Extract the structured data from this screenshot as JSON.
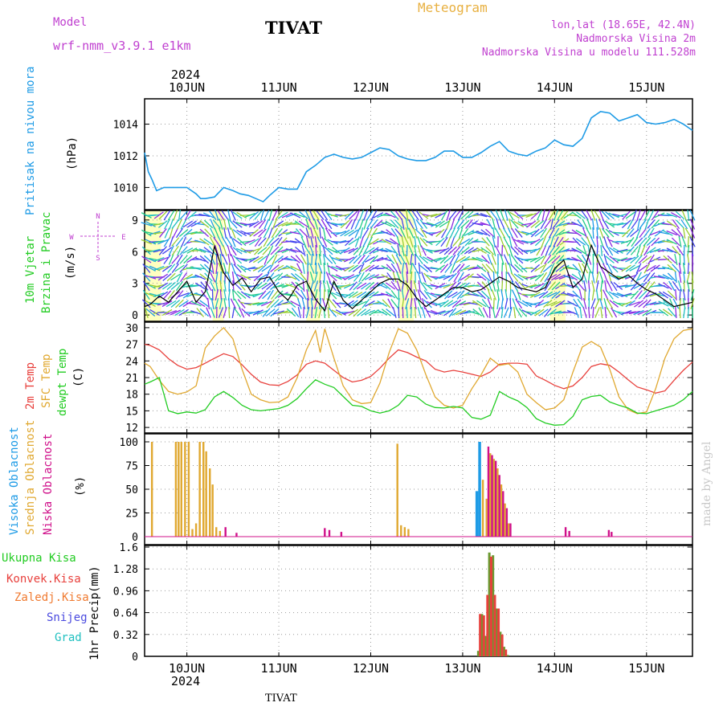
{
  "header": {
    "model_label": "Model",
    "model_name": "wrf-nmm_v3.9.1 e1km",
    "station": "TIVAT",
    "title": "Meteogram",
    "coords": "lon,lat (18.65E, 42.4N)",
    "elevation": "Nadmorska Visina 2m",
    "model_elevation": "Nadmorska Visina u modelu 111.528m",
    "year": "2024",
    "credit": "made by Angel",
    "footer_station": "TIVAT"
  },
  "colors": {
    "pressure": "#1e9be6",
    "temp2m": "#e8403c",
    "sfc_temp": "#e0a830",
    "dewpt": "#22cc22",
    "high_cloud": "#1e9be6",
    "mid_cloud": "#e0a830",
    "low_cloud": "#d0108a",
    "total_precip": "#6a9a30",
    "convective": "#e8403c",
    "stratiform": "#f07a30",
    "snow": "#4a4adf",
    "graupel": "#20c0c0",
    "purple_text": "#c040d0",
    "gold_text": "#e8b040"
  },
  "time_axis": {
    "x_range_days": [
      9.54,
      15.5
    ],
    "day_labels": [
      {
        "x": 10,
        "label": "10JUN"
      },
      {
        "x": 11,
        "label": "11JUN"
      },
      {
        "x": 12,
        "label": "12JUN"
      },
      {
        "x": 13,
        "label": "13JUN"
      },
      {
        "x": 14,
        "label": "14JUN"
      },
      {
        "x": 15,
        "label": "15JUN"
      }
    ]
  },
  "chart_data": [
    {
      "type": "line",
      "panel": "pressure",
      "ylabel": "Pritisak na nivou mora",
      "unit": "(hPa)",
      "ylim": [
        1008.6,
        1015.6
      ],
      "yticks": [
        1010,
        1012,
        1014
      ],
      "grid": true,
      "series": [
        {
          "x": [
            9.54,
            9.58,
            9.62,
            9.67,
            9.75,
            9.83,
            9.92,
            10.0,
            10.1,
            10.15,
            10.2,
            10.3,
            10.4,
            10.5,
            10.58,
            10.67,
            10.75,
            10.83,
            10.9,
            11.0,
            11.1,
            11.2,
            11.3,
            11.4,
            11.5,
            11.6,
            11.7,
            11.8,
            11.9,
            12.0,
            12.1,
            12.2,
            12.3,
            12.4,
            12.5,
            12.6,
            12.7,
            12.8,
            12.9,
            13.0,
            13.1,
            13.2,
            13.3,
            13.4,
            13.5,
            13.6,
            13.7,
            13.8,
            13.9,
            14.0,
            14.1,
            14.2,
            14.3,
            14.4,
            14.5,
            14.6,
            14.7,
            14.8,
            14.9,
            15.0,
            15.1,
            15.2,
            15.3,
            15.4,
            15.5
          ],
          "values": [
            1012.2,
            1011.0,
            1010.5,
            1009.8,
            1010.0,
            1010.0,
            1010.0,
            1010.0,
            1009.6,
            1009.3,
            1009.3,
            1009.4,
            1010.0,
            1009.8,
            1009.6,
            1009.5,
            1009.3,
            1009.1,
            1009.5,
            1010.0,
            1009.9,
            1009.9,
            1011.0,
            1011.4,
            1011.9,
            1012.1,
            1011.9,
            1011.8,
            1011.9,
            1012.2,
            1012.5,
            1012.4,
            1012.0,
            1011.8,
            1011.7,
            1011.7,
            1011.9,
            1012.3,
            1012.3,
            1011.9,
            1011.9,
            1012.2,
            1012.6,
            1012.9,
            1012.3,
            1012.1,
            1012.0,
            1012.3,
            1012.5,
            1013.0,
            1012.7,
            1012.6,
            1013.1,
            1014.4,
            1014.8,
            1014.7,
            1014.2,
            1014.4,
            1014.6,
            1014.1,
            1014.0,
            1014.1,
            1014.3,
            1014.0,
            1013.6
          ]
        }
      ]
    },
    {
      "type": "line",
      "panel": "wind",
      "ylabel_1": "10m Vjetar",
      "ylabel_2": "Brzina i Pravac",
      "unit": "(m/s)",
      "ylim": [
        -0.6,
        9.9
      ],
      "yticks": [
        0,
        3,
        6,
        9
      ],
      "compass": {
        "n": "N",
        "s": "S",
        "w": "W",
        "e": "E"
      },
      "series": [
        {
          "name": "speed",
          "x": [
            9.54,
            9.6,
            9.7,
            9.8,
            9.9,
            10.0,
            10.1,
            10.2,
            10.3,
            10.4,
            10.5,
            10.6,
            10.7,
            10.8,
            10.9,
            11.0,
            11.1,
            11.2,
            11.3,
            11.4,
            11.5,
            11.6,
            11.7,
            11.8,
            11.9,
            12.0,
            12.1,
            12.2,
            12.3,
            12.4,
            12.5,
            12.6,
            12.7,
            12.8,
            12.9,
            13.0,
            13.1,
            13.2,
            13.3,
            13.4,
            13.5,
            13.6,
            13.7,
            13.8,
            13.9,
            14.0,
            14.1,
            14.2,
            14.3,
            14.4,
            14.5,
            14.6,
            14.7,
            14.8,
            14.9,
            15.0,
            15.1,
            15.2,
            15.3,
            15.4,
            15.5
          ],
          "values": [
            0.8,
            1.0,
            1.8,
            1.2,
            2.2,
            3.2,
            1.2,
            2.2,
            6.5,
            4.0,
            2.8,
            3.5,
            2.2,
            3.4,
            3.6,
            2.2,
            1.4,
            2.8,
            3.2,
            1.5,
            0.4,
            3.2,
            1.4,
            0.6,
            1.4,
            2.2,
            3.0,
            3.4,
            3.4,
            2.8,
            1.6,
            0.8,
            1.4,
            2.0,
            2.6,
            2.6,
            2.2,
            2.4,
            3.0,
            3.6,
            3.2,
            2.6,
            2.4,
            2.2,
            2.6,
            4.4,
            5.2,
            2.6,
            3.4,
            6.6,
            4.6,
            4.0,
            3.4,
            3.8,
            3.0,
            2.4,
            2.0,
            1.4,
            0.8,
            1.0,
            1.2
          ]
        }
      ]
    },
    {
      "type": "line",
      "panel": "temperature",
      "ylabel_1": "2m Temp",
      "ylabel_2": "SFC Temp",
      "ylabel_3": "dewpt Temp",
      "unit": "(C)",
      "ylim": [
        11,
        31
      ],
      "yticks": [
        12,
        15,
        18,
        21,
        24,
        27,
        30
      ],
      "series": [
        {
          "name": "2m Temp",
          "x": [
            9.54,
            9.6,
            9.7,
            9.8,
            9.9,
            10.0,
            10.1,
            10.2,
            10.3,
            10.4,
            10.5,
            10.6,
            10.7,
            10.8,
            10.9,
            11.0,
            11.1,
            11.2,
            11.3,
            11.4,
            11.5,
            11.6,
            11.7,
            11.8,
            11.9,
            12.0,
            12.1,
            12.2,
            12.3,
            12.4,
            12.5,
            12.6,
            12.7,
            12.8,
            12.9,
            13.0,
            13.1,
            13.2,
            13.3,
            13.4,
            13.5,
            13.6,
            13.7,
            13.8,
            13.9,
            14.0,
            14.1,
            14.2,
            14.3,
            14.4,
            14.5,
            14.6,
            14.7,
            14.8,
            14.9,
            15.0,
            15.1,
            15.2,
            15.3,
            15.4,
            15.5
          ],
          "values": [
            27.0,
            26.8,
            26.0,
            24.4,
            23.2,
            22.5,
            22.8,
            23.6,
            24.5,
            25.3,
            24.8,
            23.3,
            21.6,
            20.2,
            19.7,
            19.6,
            20.3,
            21.5,
            23.4,
            24.0,
            23.6,
            22.3,
            21.0,
            20.2,
            20.5,
            21.2,
            22.7,
            24.5,
            26.0,
            25.5,
            24.7,
            24.0,
            22.5,
            22.0,
            22.3,
            22.0,
            21.6,
            21.2,
            22.0,
            23.4,
            23.6,
            23.6,
            23.4,
            21.3,
            20.5,
            19.6,
            19.0,
            19.5,
            21.0,
            23.0,
            23.5,
            23.2,
            22.0,
            20.6,
            19.3,
            18.8,
            18.2,
            18.6,
            20.5,
            22.3,
            23.8
          ]
        },
        {
          "name": "SFC Temp",
          "x": [
            9.54,
            9.6,
            9.7,
            9.8,
            9.9,
            10.0,
            10.1,
            10.2,
            10.3,
            10.4,
            10.5,
            10.6,
            10.7,
            10.8,
            10.9,
            11.0,
            11.1,
            11.2,
            11.3,
            11.4,
            11.45,
            11.5,
            11.6,
            11.7,
            11.8,
            11.9,
            12.0,
            12.1,
            12.2,
            12.3,
            12.4,
            12.5,
            12.6,
            12.7,
            12.8,
            12.9,
            13.0,
            13.1,
            13.2,
            13.3,
            13.4,
            13.5,
            13.6,
            13.7,
            13.8,
            13.9,
            14.0,
            14.1,
            14.2,
            14.3,
            14.4,
            14.5,
            14.6,
            14.7,
            14.8,
            14.9,
            15.0,
            15.1,
            15.2,
            15.3,
            15.4,
            15.5
          ],
          "values": [
            23.6,
            23.0,
            20.5,
            18.5,
            18.0,
            18.4,
            19.5,
            26.3,
            28.5,
            30.0,
            28.0,
            22.5,
            18.0,
            17.0,
            16.5,
            16.6,
            17.5,
            21.0,
            26.0,
            29.5,
            25.5,
            29.8,
            24.5,
            19.5,
            17.0,
            16.3,
            16.5,
            20.0,
            25.5,
            29.8,
            29.0,
            26.0,
            21.5,
            17.5,
            16.0,
            15.5,
            16.0,
            19.0,
            21.5,
            24.5,
            23.2,
            23.5,
            22.0,
            18.0,
            16.5,
            15.2,
            15.5,
            17.0,
            22.0,
            26.5,
            27.5,
            26.5,
            22.5,
            17.5,
            15.2,
            14.5,
            14.8,
            19.0,
            24.5,
            28.0,
            29.5,
            29.8
          ]
        },
        {
          "name": "dewpt Temp",
          "x": [
            9.54,
            9.6,
            9.7,
            9.8,
            9.9,
            10.0,
            10.1,
            10.2,
            10.3,
            10.4,
            10.5,
            10.6,
            10.7,
            10.8,
            10.9,
            11.0,
            11.1,
            11.2,
            11.3,
            11.4,
            11.5,
            11.6,
            11.7,
            11.8,
            11.9,
            12.0,
            12.1,
            12.2,
            12.3,
            12.4,
            12.5,
            12.6,
            12.7,
            12.8,
            12.9,
            13.0,
            13.1,
            13.2,
            13.3,
            13.4,
            13.5,
            13.6,
            13.7,
            13.8,
            13.9,
            14.0,
            14.1,
            14.2,
            14.3,
            14.4,
            14.5,
            14.6,
            14.7,
            14.8,
            14.9,
            15.0,
            15.1,
            15.2,
            15.3,
            15.4,
            15.5
          ],
          "values": [
            19.8,
            20.2,
            21.0,
            15.0,
            14.5,
            14.8,
            14.6,
            15.2,
            17.5,
            18.5,
            17.4,
            16.0,
            15.2,
            15.0,
            15.2,
            15.4,
            16.0,
            17.2,
            19.0,
            20.6,
            19.8,
            19.2,
            17.6,
            16.0,
            15.8,
            15.0,
            14.6,
            15.0,
            16.0,
            17.8,
            17.5,
            16.2,
            15.6,
            15.5,
            15.8,
            15.5,
            13.8,
            13.5,
            14.2,
            18.5,
            17.5,
            16.8,
            15.6,
            13.6,
            12.8,
            12.4,
            12.5,
            14.0,
            17.0,
            17.6,
            17.8,
            16.6,
            16.0,
            15.5,
            14.6,
            14.5,
            15.0,
            15.5,
            16.0,
            17.0,
            18.5
          ]
        }
      ]
    },
    {
      "type": "bar",
      "panel": "clouds",
      "ylabel_1": "Visoka Oblacnost",
      "ylabel_2": "Srednja Oblacnost",
      "ylabel_3": "Niska Oblacnost",
      "unit": "(%)",
      "ylim": [
        0,
        100
      ],
      "yticks": [
        0,
        25,
        50,
        75,
        100
      ],
      "series": [
        {
          "name": "Visoka Oblacnost",
          "x": [
            13.15,
            13.18
          ],
          "values": [
            48,
            100
          ]
        },
        {
          "name": "Srednja Oblacnost",
          "x": [
            9.62,
            9.88,
            9.91,
            9.94,
            9.98,
            10.02,
            10.06,
            10.1,
            10.14,
            10.18,
            10.21,
            10.25,
            10.28,
            10.32,
            10.36,
            12.29,
            12.33,
            12.37,
            12.41,
            13.22,
            13.26,
            13.3,
            13.34,
            13.38,
            13.42,
            13.46,
            13.5
          ],
          "values": [
            100,
            100,
            100,
            100,
            100,
            100,
            8,
            14,
            100,
            100,
            90,
            72,
            55,
            10,
            6,
            98,
            12,
            10,
            8,
            60,
            40,
            88,
            82,
            72,
            55,
            35,
            14
          ]
        },
        {
          "name": "Niska Oblacnost",
          "x": [
            10.42,
            10.54,
            11.5,
            11.55,
            11.68,
            13.28,
            13.32,
            13.36,
            13.4,
            13.44,
            13.48,
            13.52,
            14.12,
            14.16,
            14.59,
            14.62
          ],
          "values": [
            10,
            4,
            9,
            7,
            5,
            95,
            86,
            80,
            65,
            48,
            30,
            14,
            10,
            6,
            7,
            5
          ]
        }
      ]
    },
    {
      "type": "bar",
      "panel": "precip",
      "ylabel_1": "1hr Precip",
      "unit": "(mm)",
      "legend": [
        "Ukupna Kisa",
        "Konvek.Kisa",
        "Zaledj.Kisa",
        "Snijeg",
        "Grad"
      ],
      "ylim": [
        0,
        1.6
      ],
      "yticks": [
        0,
        0.32,
        0.64,
        0.96,
        1.28,
        1.6
      ],
      "series": [
        {
          "name": "Ukupna Kisa",
          "x": [
            13.17,
            13.21,
            13.25,
            13.29,
            13.33,
            13.37,
            13.41,
            13.45,
            13.49
          ],
          "values": [
            0.08,
            0.62,
            0.3,
            1.52,
            1.48,
            0.7,
            0.36,
            0.14,
            0.02
          ]
        },
        {
          "name": "Konvek.Kisa",
          "x": [
            13.19,
            13.23,
            13.27,
            13.31,
            13.35,
            13.39,
            13.43,
            13.47
          ],
          "values": [
            0.62,
            0.6,
            0.9,
            1.46,
            0.9,
            0.7,
            0.32,
            0.1
          ]
        }
      ]
    }
  ]
}
